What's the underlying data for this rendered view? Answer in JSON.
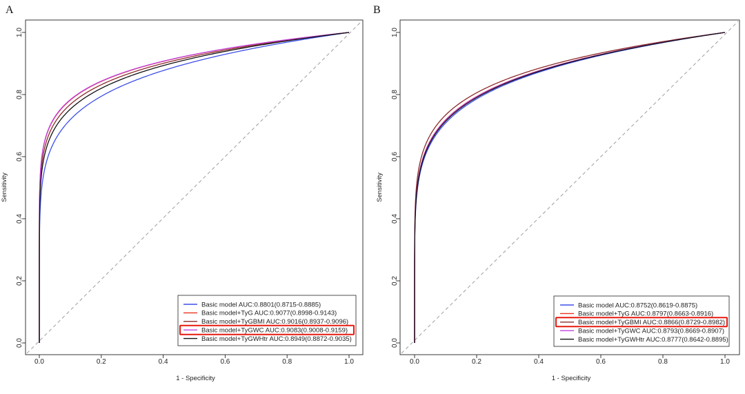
{
  "figure": {
    "panels": [
      "A",
      "B"
    ]
  },
  "chart_data": [
    {
      "panel": "A",
      "type": "line",
      "title": "",
      "xlabel": "1 - Specificity",
      "ylabel": "Sensitivity",
      "xlim": [
        0,
        1
      ],
      "ylim": [
        0,
        1
      ],
      "xticks": [
        "0.0",
        "0.2",
        "0.4",
        "0.6",
        "0.8",
        "1.0"
      ],
      "yticks": [
        "0.0",
        "0.2",
        "0.4",
        "0.6",
        "0.8",
        "1.0"
      ],
      "reference_line": {
        "from": [
          0,
          0
        ],
        "to": [
          1,
          1
        ],
        "style": "dashed",
        "color": "#a6a6a6"
      },
      "legend_position": "bottom-right",
      "highlighted_series": 3,
      "highlight_color": "#e8190f",
      "series": [
        {
          "name": "Basic model",
          "label": "Basic model AUC:0.8801(0.8715-0.8885)",
          "auc": 0.8801,
          "ci": [
            0.8715,
            0.8885
          ],
          "color": "#3b4ee8"
        },
        {
          "name": "Basic model+TyG",
          "label": "Basic model+TyG AUC:0.9077(0.8998-0.9143)",
          "auc": 0.9077,
          "ci": [
            0.8998,
            0.9143
          ],
          "color": "#e8321e"
        },
        {
          "name": "Basic model+TyGBMI",
          "label": "Basic model+TyGBMI AUC:0.9016(0.8937-0.9096)",
          "auc": 0.9016,
          "ci": [
            0.8937,
            0.9096
          ],
          "color": "#8b2a2a"
        },
        {
          "name": "Basic model+TyGWC",
          "label": "Basic model+TyGWC AUC:0.9083(0.9008-0.9159)",
          "auc": 0.9083,
          "ci": [
            0.9008,
            0.9159
          ],
          "color": "#c040e0"
        },
        {
          "name": "Basic model+TyGWHtr",
          "label": "Basic model+TyGWHtr AUC:0.8949(0.8872-0.9035)",
          "auc": 0.8949,
          "ci": [
            0.8872,
            0.9035
          ],
          "color": "#111111"
        }
      ]
    },
    {
      "panel": "B",
      "type": "line",
      "title": "",
      "xlabel": "1 - Specificity",
      "ylabel": "Sensitivity",
      "xlim": [
        0,
        1
      ],
      "ylim": [
        0,
        1
      ],
      "xticks": [
        "0.0",
        "0.2",
        "0.4",
        "0.6",
        "0.8",
        "1.0"
      ],
      "yticks": [
        "0.0",
        "0.2",
        "0.4",
        "0.6",
        "0.8",
        "1.0"
      ],
      "reference_line": {
        "from": [
          0,
          0
        ],
        "to": [
          1,
          1
        ],
        "style": "dashed",
        "color": "#a6a6a6"
      },
      "legend_position": "bottom-right",
      "highlighted_series": 2,
      "highlight_color": "#e8190f",
      "series": [
        {
          "name": "Basic model",
          "label": "Basic model AUC:0.8752(0.8619-0.8875)",
          "auc": 0.8752,
          "ci": [
            0.8619,
            0.8875
          ],
          "color": "#3b4ee8"
        },
        {
          "name": "Basic model+TyG",
          "label": "Basic model+TyG AUC:0.8797(0.8663-0.8916)",
          "auc": 0.8797,
          "ci": [
            0.8663,
            0.8916
          ],
          "color": "#e8321e"
        },
        {
          "name": "Basic model+TyGBMI",
          "label": "Basic model+TyGBMI AUC:0.8866(0.8729-0.8982)",
          "auc": 0.8866,
          "ci": [
            0.8729,
            0.8982
          ],
          "color": "#8b2a2a"
        },
        {
          "name": "Basic model+TyGWC",
          "label": "Basic model+TyGWC AUC:0.8793(0.8669-0.8907)",
          "auc": 0.8793,
          "ci": [
            0.8669,
            0.8907
          ],
          "color": "#c040e0"
        },
        {
          "name": "Basic model+TyGWHtr",
          "label": "Basic model+TyGWHtr AUC:0.8777(0.8642-0.8895)",
          "auc": 0.8777,
          "ci": [
            0.8642,
            0.8895
          ],
          "color": "#111111"
        }
      ]
    }
  ]
}
